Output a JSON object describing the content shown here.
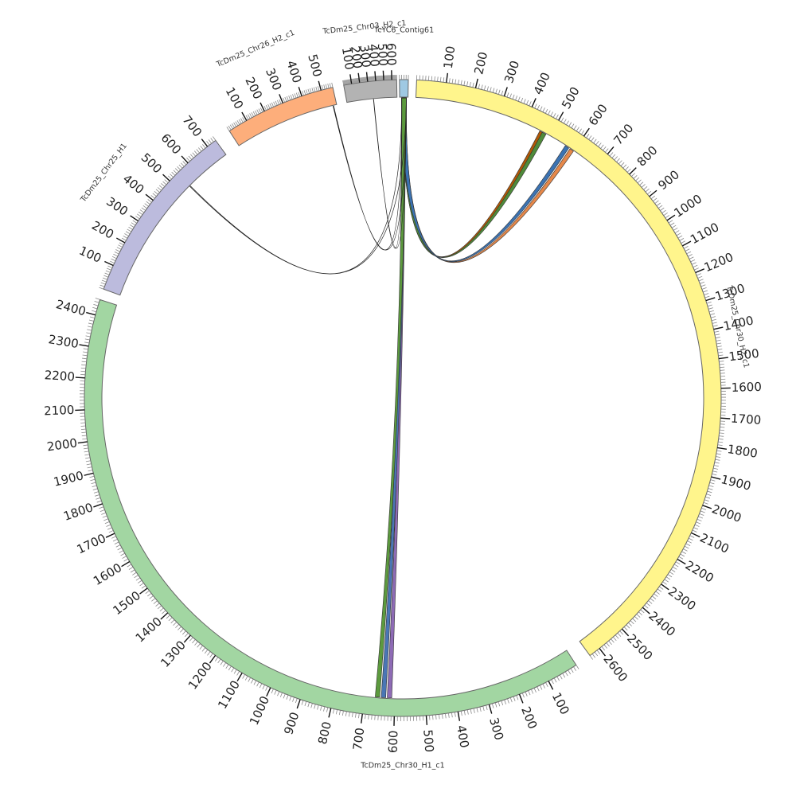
{
  "diagram": {
    "type": "circos",
    "segments": [
      {
        "id": "contig61",
        "name": "TcYC6_Contig61",
        "length": 40,
        "color": "#9fc9e3",
        "ticks": []
      },
      {
        "id": "chr30h2",
        "name": "TcDm25_Chr30_H2_c1",
        "length": 2640,
        "color": "#fff58c",
        "ticks": [
          "100",
          "200",
          "300",
          "400",
          "500",
          "600",
          "700",
          "800",
          "900",
          "1000",
          "1100",
          "1200",
          "1300",
          "1400",
          "1500",
          "1600",
          "1700",
          "1800",
          "1900",
          "2000",
          "2100",
          "2200",
          "2300",
          "2400",
          "2500",
          "2600"
        ]
      },
      {
        "id": "chr30h1",
        "name": "TcDm25_Chr30_H1_c1",
        "length": 2450,
        "color": "#a2d6a2",
        "ticks": [
          "100",
          "200",
          "300",
          "400",
          "500",
          "600",
          "700",
          "800",
          "900",
          "1000",
          "1100",
          "1200",
          "1300",
          "1400",
          "1500",
          "1600",
          "1700",
          "1800",
          "1900",
          "2000",
          "2100",
          "2200",
          "2300",
          "2400"
        ]
      },
      {
        "id": "chr25h1",
        "name": "TcDm25_Chr25_H1",
        "length": 740,
        "color": "#bcbbdd",
        "ticks": [
          "100",
          "200",
          "300",
          "400",
          "500",
          "600",
          "700"
        ]
      },
      {
        "id": "chr26h2",
        "name": "TcDm25_Chr26_H2_c1",
        "length": 560,
        "color": "#fdae7b",
        "ticks": [
          "100",
          "200",
          "300",
          "400",
          "500"
        ]
      },
      {
        "id": "chr03h2",
        "name": "TcDm25_Chr03_H2_c1",
        "length": 660,
        "color": "#b3b3b3",
        "ticks": [
          "100",
          "200",
          "300",
          "400",
          "500",
          "600"
        ]
      }
    ],
    "links": [
      {
        "from": "contig61",
        "to": "chr30h2",
        "pos": 460,
        "color": "#b35806"
      },
      {
        "from": "contig61",
        "to": "chr30h2",
        "pos": 470,
        "color": "#4f8b3a"
      },
      {
        "from": "contig61",
        "to": "chr30h2",
        "pos": 585,
        "color": "#e6884a"
      },
      {
        "from": "contig61",
        "to": "chr30h2",
        "pos": 565,
        "color": "#3b73b3"
      },
      {
        "from": "contig61",
        "to": "chr30h1",
        "pos": 610,
        "color": "#8e6bb5"
      },
      {
        "from": "contig61",
        "to": "chr30h1",
        "pos": 630,
        "color": "#4a76b5"
      },
      {
        "from": "contig61",
        "to": "chr30h1",
        "pos": 650,
        "color": "#5c9a3e"
      },
      {
        "from": "contig61",
        "to": "chr25h1",
        "pos": 540,
        "color": "#222222"
      },
      {
        "from": "contig61",
        "to": "chr26h2",
        "pos": 540,
        "color": "#222222"
      },
      {
        "from": "contig61",
        "to": "chr03h2",
        "pos": 350,
        "color": "#222222"
      }
    ]
  }
}
